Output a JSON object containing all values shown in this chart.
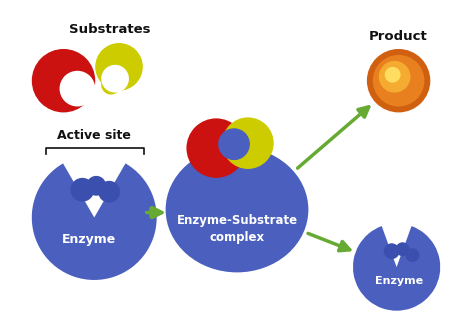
{
  "bg_color": "#ffffff",
  "enzyme_color": "#4a5fbe",
  "enzyme_dark": "#3a4fae",
  "substrate_red": "#cc1111",
  "substrate_yellow": "#cccc00",
  "product_outer": "#d06010",
  "product_mid": "#e88020",
  "product_inner": "#f5aa30",
  "product_bright": "#ffdd60",
  "arrow_color": "#66aa33",
  "text_color": "#111111",
  "label_enzyme1": "Enzyme",
  "label_complex": "Enzyme-Substrate\ncomplex",
  "label_enzyme3": "Enzyme",
  "label_substrates": "Substrates",
  "label_active": "Active site",
  "label_product": "Product",
  "figsize": [
    4.74,
    3.22
  ],
  "dpi": 100
}
